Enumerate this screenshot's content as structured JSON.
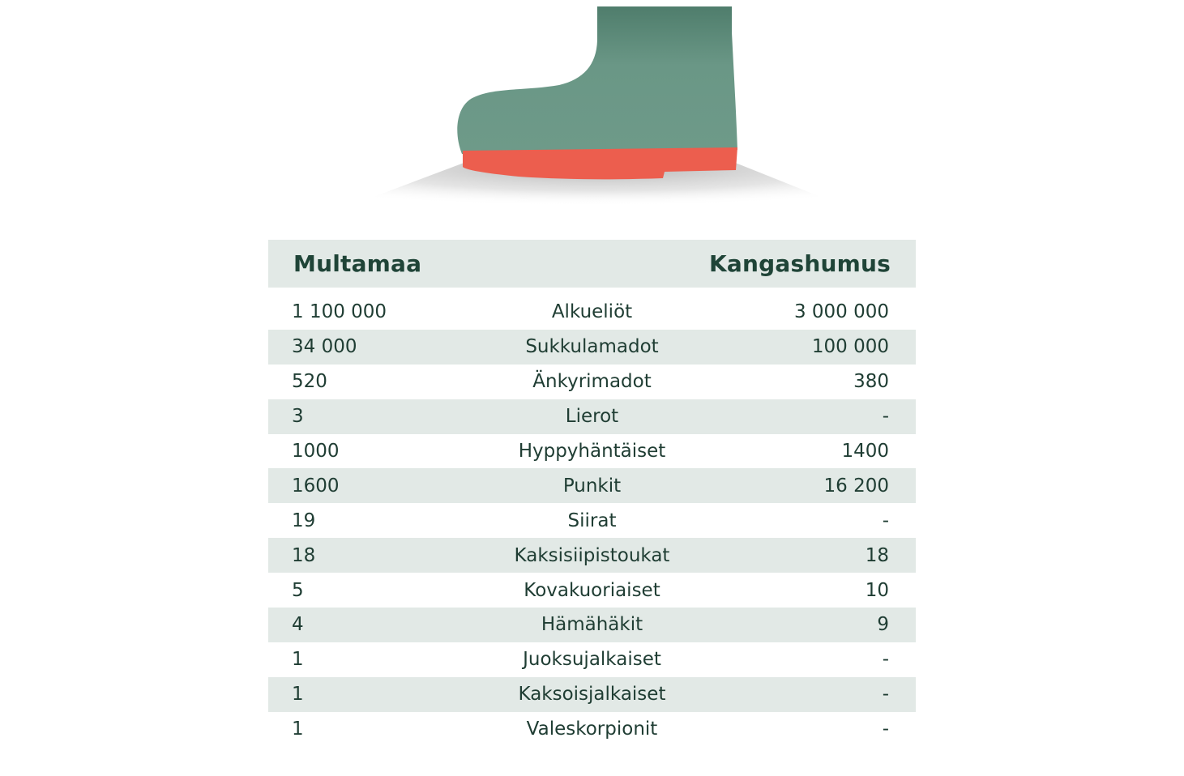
{
  "colors": {
    "boot": "#6e9a89",
    "sole": "#ec5e4e",
    "header_bg": "#e2e9e6",
    "text": "#1f3d33"
  },
  "table": {
    "header_left": "Multamaa",
    "header_right": "Kangashumus",
    "rows": [
      {
        "left": "1 100 000",
        "name": "Alkueliöt",
        "right": "3 000 000"
      },
      {
        "left": "34 000",
        "name": "Sukkulamadot",
        "right": "100 000"
      },
      {
        "left": "520",
        "name": "Änkyrimadot",
        "right": "380"
      },
      {
        "left": "3",
        "name": "Lierot",
        "right": "-"
      },
      {
        "left": "1000",
        "name": "Hyppyhäntäiset",
        "right": "1400"
      },
      {
        "left": "1600",
        "name": "Punkit",
        "right": "16 200"
      },
      {
        "left": "19",
        "name": "Siirat",
        "right": "-"
      },
      {
        "left": "18",
        "name": "Kaksisiipistoukat",
        "right": "18"
      },
      {
        "left": "5",
        "name": "Kovakuoriaiset",
        "right": "10"
      },
      {
        "left": "4",
        "name": "Hämähäkit",
        "right": "9"
      },
      {
        "left": "1",
        "name": "Juoksujalkaiset",
        "right": "-"
      },
      {
        "left": "1",
        "name": "Kaksoisjalkaiset",
        "right": "-"
      },
      {
        "left": "1",
        "name": "Valeskorpionit",
        "right": "-"
      }
    ]
  }
}
